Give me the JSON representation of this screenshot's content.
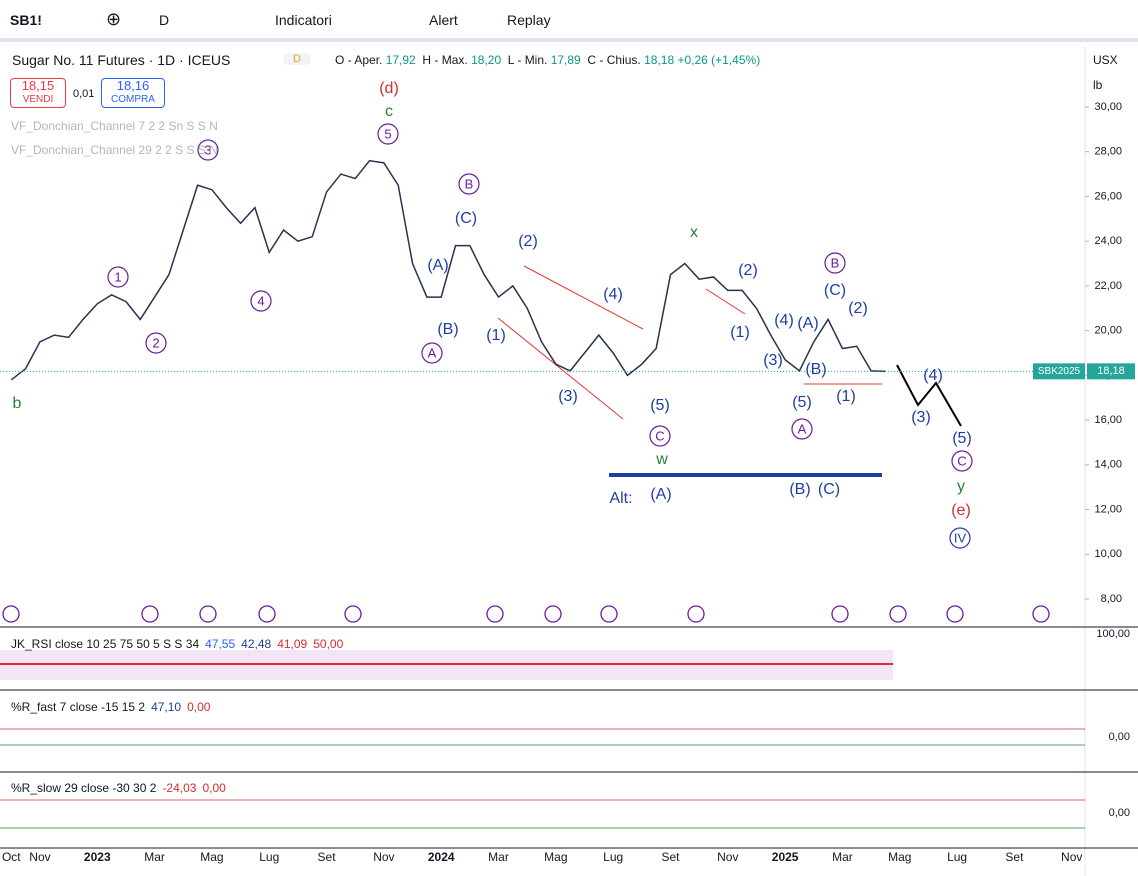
{
  "toolbar": {
    "symbol": "SB1!",
    "interval": "D",
    "indicators": "Indicatori",
    "alert": "Alert",
    "replay": "Replay"
  },
  "header": {
    "title": "Sugar No. 11 Futures · 1D · ICEUS",
    "badge": "D",
    "open_label": "O - Aper.",
    "open": "17,92",
    "high_label": "H - Max.",
    "high": "18,20",
    "low_label": "L - Min.",
    "low": "17,89",
    "close_label": "C - Chius.",
    "close": "18,18",
    "change": "+0,26 (+1,45%)",
    "sell_price": "18,15",
    "sell": "VENDI",
    "spread": "0,01",
    "buy_price": "18,16",
    "buy": "COMPRA",
    "indicator_1": "VF_Donchian_Channel 7 2 2 Sn S S N",
    "indicator_2": "VF_Donchian_Channel 29 2 2 S S S N",
    "currency": "USX",
    "unit": "lb"
  },
  "chart_data": {
    "type": "line",
    "color": "#26334d",
    "categories": [
      "Oct",
      null,
      "Nov",
      null,
      null,
      null,
      "2023",
      null,
      null,
      null,
      "Mar",
      null,
      null,
      null,
      "Mag",
      null,
      null,
      null,
      "Lug",
      null,
      null,
      null,
      "Set",
      null,
      null,
      null,
      "Nov",
      null,
      null,
      null,
      "2024",
      null,
      null,
      null,
      "Mar",
      null,
      null,
      null,
      "Mag",
      null,
      null,
      null,
      "Lug",
      null,
      null,
      null,
      "Set",
      null,
      null,
      null,
      "Nov",
      null,
      null,
      null,
      "2025",
      null,
      null,
      null,
      "Mar",
      null,
      null,
      null,
      "Mag",
      null,
      null,
      null,
      "Lug",
      null,
      null,
      null,
      "Set",
      null,
      null,
      null,
      "Nov",
      null
    ],
    "values": [
      17.8,
      18.3,
      19.5,
      19.8,
      19.7,
      20.5,
      21.2,
      21.6,
      21.3,
      20.5,
      21.5,
      22.5,
      24.5,
      26.5,
      26.3,
      25.5,
      24.8,
      25.5,
      23.5,
      24.5,
      24.0,
      24.2,
      26.2,
      27.0,
      26.8,
      27.6,
      27.5,
      26.5,
      23.0,
      21.5,
      21.5,
      23.8,
      23.8,
      22.5,
      21.5,
      22.0,
      21.0,
      19.5,
      18.5,
      18.2,
      19.0,
      19.8,
      19.0,
      18.0,
      18.5,
      19.2,
      22.5,
      23.0,
      22.3,
      22.4,
      21.8,
      21.8,
      21.0,
      19.8,
      18.7,
      18.2,
      19.5,
      20.5,
      19.2,
      19.3,
      18.2,
      18.18,
      null,
      null,
      null,
      null,
      null,
      null,
      null,
      null,
      null,
      null,
      null,
      null,
      null,
      null
    ],
    "ylim": [
      6.75,
      32.77
    ],
    "yticks": [
      {
        "value": 30,
        "label": "30,00"
      },
      {
        "value": 28,
        "label": "28,00"
      },
      {
        "value": 26,
        "label": "26,00"
      },
      {
        "value": 24,
        "label": "24,00"
      },
      {
        "value": 22,
        "label": "22,00"
      },
      {
        "value": 20,
        "label": "20,00"
      },
      {
        "value": 18,
        "label": "18,00"
      },
      {
        "value": 16,
        "label": "16,00"
      },
      {
        "value": 14,
        "label": "14,00"
      },
      {
        "value": 12,
        "label": "12,00"
      },
      {
        "value": 10,
        "label": "10,00"
      },
      {
        "value": 8,
        "label": "8,00"
      }
    ],
    "last": {
      "value": 18.18,
      "label": "18,18",
      "name": "SBK2025"
    },
    "annotations": [
      {
        "text": "(d)",
        "color": "#d32f2f"
      },
      {
        "text": "c",
        "color": "#2e7d32"
      },
      {
        "text": "5",
        "color": "#6a1b9a",
        "circled": true
      },
      {
        "text": "3",
        "color": "#6a1b9a",
        "circled": true
      },
      {
        "text": "1",
        "color": "#6a1b9a",
        "circled": true
      },
      {
        "text": "2",
        "color": "#6a1b9a",
        "circled": true
      },
      {
        "text": "4",
        "color": "#6a1b9a",
        "circled": true
      },
      {
        "text": "b",
        "color": "#2e7d32"
      },
      {
        "text": "B",
        "color": "#6a1b9a",
        "circled": true
      },
      {
        "text": "(C)",
        "color": "#1e3fa0"
      },
      {
        "text": "(A)",
        "color": "#1e3fa0"
      },
      {
        "text": "(B)",
        "color": "#1e3fa0"
      },
      {
        "text": "A",
        "color": "#6a1b9a",
        "circled": true
      },
      {
        "text": "(2)",
        "color": "#1e3fa0"
      },
      {
        "text": "(1)",
        "color": "#1e3fa0"
      },
      {
        "text": "(4)",
        "color": "#1e3fa0"
      },
      {
        "text": "(3)",
        "color": "#1e3fa0"
      },
      {
        "text": "(5)",
        "color": "#1e3fa0"
      },
      {
        "text": "C",
        "color": "#6a1b9a",
        "circled": true
      },
      {
        "text": "w",
        "color": "#2e7d32"
      },
      {
        "text": "x",
        "color": "#2e7d32"
      },
      {
        "text": "(2)",
        "color": "#1e3fa0"
      },
      {
        "text": "(1)",
        "color": "#1e3fa0"
      },
      {
        "text": "B",
        "color": "#6a1b9a",
        "circled": true
      },
      {
        "text": "(C)",
        "color": "#1e3fa0"
      },
      {
        "text": "(A)",
        "color": "#1e3fa0"
      },
      {
        "text": "(4)",
        "color": "#1e3fa0"
      },
      {
        "text": "(3)",
        "color": "#1e3fa0"
      },
      {
        "text": "(B)",
        "color": "#1e3fa0"
      },
      {
        "text": "(2)",
        "color": "#1e3fa0"
      },
      {
        "text": "(1)",
        "color": "#1e3fa0"
      },
      {
        "text": "(5)",
        "color": "#1e3fa0"
      },
      {
        "text": "A",
        "color": "#6a1b9a",
        "circled": true
      },
      {
        "text": "(4)",
        "color": "#1e3fa0"
      },
      {
        "text": "(3)",
        "color": "#1e3fa0"
      },
      {
        "text": "(5)",
        "color": "#1e3fa0"
      },
      {
        "text": "C",
        "color": "#6a1b9a",
        "circled": true
      },
      {
        "text": "y",
        "color": "#2e7d32"
      },
      {
        "text": "(e)",
        "color": "#d32f2f"
      },
      {
        "text": "IV",
        "color": "#1e3fa0",
        "circled": true
      },
      {
        "text": "Alt:",
        "color": "#1e3fa0"
      },
      {
        "text": "(A)",
        "color": "#1e3fa0"
      },
      {
        "text": "(B)",
        "color": "#1e3fa0"
      },
      {
        "text": "(C)",
        "color": "#1e3fa0"
      }
    ]
  },
  "panes": [
    {
      "title": "JK_RSI close 10 25 75 50 5 S S 34",
      "values": [
        "47,55",
        "42,48",
        "41,09",
        "50,00"
      ],
      "axis": "100,00"
    },
    {
      "title": "%R_fast 7 close -15 15 2",
      "values": [
        "47,10",
        "0,00"
      ],
      "axis": "0,00"
    },
    {
      "title": "%R_slow 29 close -30 30 2",
      "values": [
        "-24,03",
        "0,00"
      ],
      "axis": "0,00"
    }
  ]
}
